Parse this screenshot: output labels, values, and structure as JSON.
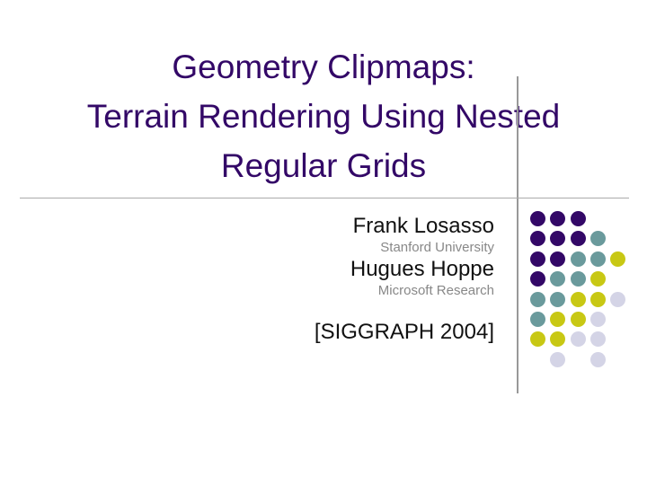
{
  "title": {
    "lines": [
      "Geometry Clipmaps:",
      "Terrain Rendering Using Nested",
      "Regular Grids"
    ]
  },
  "authors": [
    {
      "name": "Frank Losasso",
      "affiliation": "Stanford University"
    },
    {
      "name": "Hugues Hoppe",
      "affiliation": "Microsoft Research"
    }
  ],
  "venue": "[SIGGRAPH 2004]",
  "colors": {
    "title": "#330867",
    "P": "#330867",
    "T": "#6a9a9c",
    "Y": "#c8c814",
    "L": "#d4d4e6"
  },
  "dot_grid": [
    "PPP..",
    "PPPT.",
    "PPTTY",
    "PTTY.",
    "TTYYL",
    "TYYL.",
    "YYLL.",
    ".L.L."
  ]
}
